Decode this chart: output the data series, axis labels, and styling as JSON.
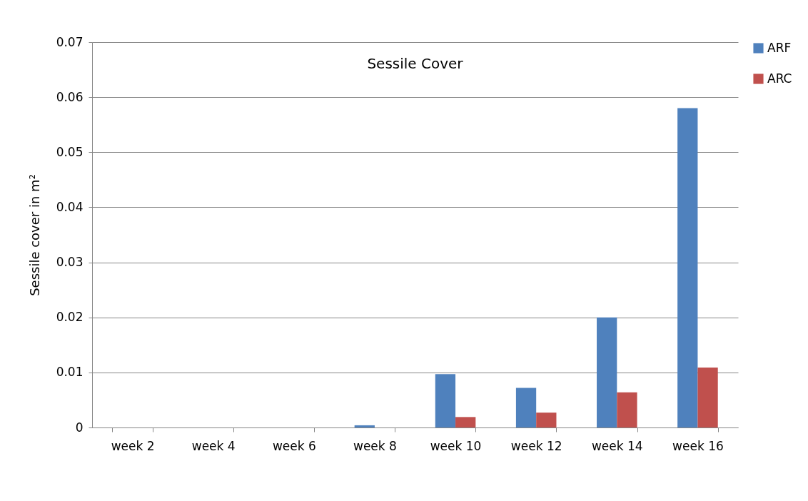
{
  "chart_data": {
    "type": "bar",
    "title": "Sessile Cover",
    "ylabel": "Sessile cover in m²",
    "categories": [
      "week 2",
      "week 4",
      "week 6",
      "week 8",
      "week 10",
      "week 12",
      "week 14",
      "week 16"
    ],
    "series": [
      {
        "name": "ARF",
        "color": "#4f81bd",
        "values": [
          0,
          0,
          0,
          0.0004,
          0.0097,
          0.0072,
          0.02,
          0.058
        ]
      },
      {
        "name": "ARC",
        "color": "#c0504d",
        "values": [
          0,
          0,
          0,
          0,
          0.0019,
          0.0027,
          0.0064,
          0.0109
        ]
      }
    ],
    "ylim": [
      0,
      0.07
    ],
    "yticks": [
      0,
      0.01,
      0.02,
      0.03,
      0.04,
      0.05,
      0.06,
      0.07
    ],
    "grid": "y",
    "legend": "right"
  }
}
